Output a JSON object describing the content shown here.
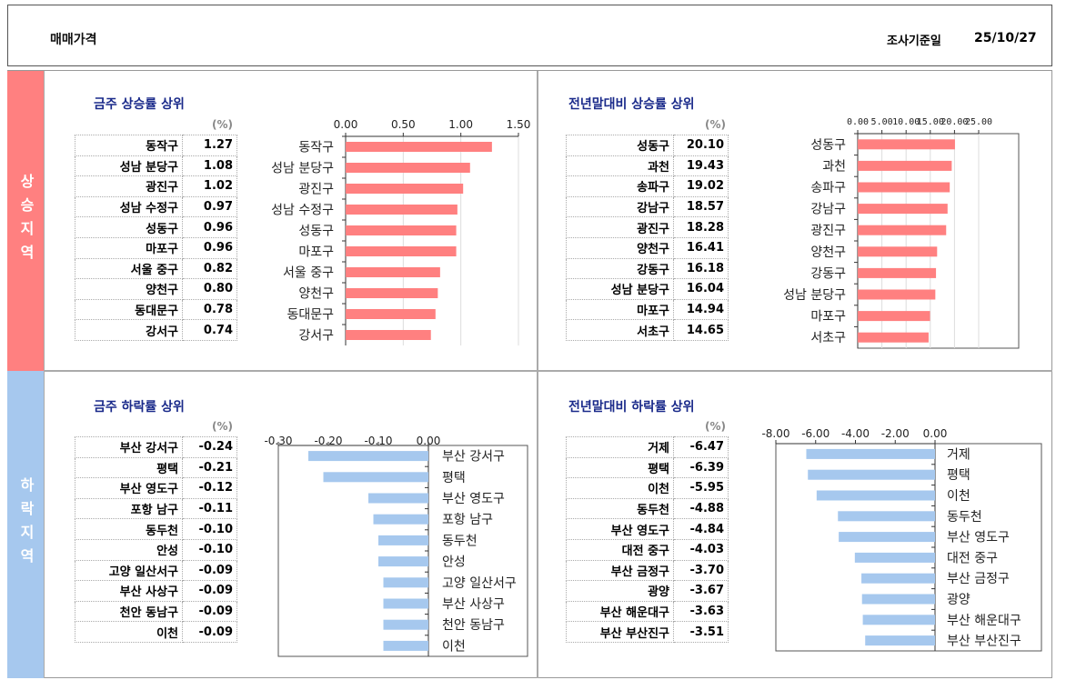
{
  "header": {
    "title": "매매가격",
    "date_label": "조사기준일",
    "date": "25/10/27"
  },
  "side": {
    "up": "상승지역",
    "down": "하락지역"
  },
  "unit": "(%)",
  "colors": {
    "up": "#ff8080",
    "down": "#a6c8ee"
  },
  "quadrants": [
    {
      "title": "금주 상승률 상위",
      "rows": [
        [
          "동작구",
          "1.27"
        ],
        [
          "성남 분당구",
          "1.08"
        ],
        [
          "광진구",
          "1.02"
        ],
        [
          "성남 수정구",
          "0.97"
        ],
        [
          "성동구",
          "0.96"
        ],
        [
          "마포구",
          "0.96"
        ],
        [
          "서울 중구",
          "0.82"
        ],
        [
          "양천구",
          "0.80"
        ],
        [
          "동대문구",
          "0.78"
        ],
        [
          "강서구",
          "0.74"
        ]
      ]
    },
    {
      "title": "전년말대비 상승률 상위",
      "rows": [
        [
          "성동구",
          "20.10"
        ],
        [
          "과천",
          "19.43"
        ],
        [
          "송파구",
          "19.02"
        ],
        [
          "강남구",
          "18.57"
        ],
        [
          "광진구",
          "18.28"
        ],
        [
          "양천구",
          "16.41"
        ],
        [
          "강동구",
          "16.18"
        ],
        [
          "성남 분당구",
          "16.04"
        ],
        [
          "마포구",
          "14.94"
        ],
        [
          "서초구",
          "14.65"
        ]
      ]
    },
    {
      "title": "금주 하락률 상위",
      "rows": [
        [
          "부산 강서구",
          "-0.24"
        ],
        [
          "평택",
          "-0.21"
        ],
        [
          "부산 영도구",
          "-0.12"
        ],
        [
          "포항 남구",
          "-0.11"
        ],
        [
          "동두천",
          "-0.10"
        ],
        [
          "안성",
          "-0.10"
        ],
        [
          "고양 일산서구",
          "-0.09"
        ],
        [
          "부산 사상구",
          "-0.09"
        ],
        [
          "천안 동남구",
          "-0.09"
        ],
        [
          "이천",
          "-0.09"
        ]
      ]
    },
    {
      "title": "전년말대비 하락률 상위",
      "rows": [
        [
          "거제",
          "-6.47"
        ],
        [
          "평택",
          "-6.39"
        ],
        [
          "이천",
          "-5.95"
        ],
        [
          "동두천",
          "-4.88"
        ],
        [
          "부산 영도구",
          "-4.84"
        ],
        [
          "대전 중구",
          "-4.03"
        ],
        [
          "부산 금정구",
          "-3.70"
        ],
        [
          "광양",
          "-3.67"
        ],
        [
          "부산 해운대구",
          "-3.63"
        ],
        [
          "부산 부산진구",
          "-3.51"
        ]
      ]
    }
  ],
  "chart_data": [
    {
      "type": "bar",
      "orientation": "horizontal",
      "categories": [
        "동작구",
        "성남 분당구",
        "광진구",
        "성남 수정구",
        "성동구",
        "마포구",
        "서울 중구",
        "양천구",
        "동대문구",
        "강서구"
      ],
      "values": [
        1.27,
        1.08,
        1.02,
        0.97,
        0.96,
        0.96,
        0.82,
        0.8,
        0.78,
        0.74
      ],
      "xlim": [
        0,
        1.5
      ],
      "ticks": [
        "0.00",
        "0.50",
        "1.00",
        "1.50"
      ],
      "tick_values": [
        0,
        0.5,
        1,
        1.5
      ]
    },
    {
      "type": "bar",
      "orientation": "horizontal",
      "categories": [
        "성동구",
        "과천",
        "송파구",
        "강남구",
        "광진구",
        "양천구",
        "강동구",
        "성남 분당구",
        "마포구",
        "서초구"
      ],
      "values": [
        20.1,
        19.43,
        19.02,
        18.57,
        18.28,
        16.41,
        16.18,
        16.04,
        14.94,
        14.65
      ],
      "xlim": [
        0,
        25
      ],
      "ticks": [
        "0.00",
        "5.00",
        "10.00",
        "15.00",
        "20.00",
        "25.00"
      ],
      "tick_values": [
        0,
        5,
        10,
        15,
        20,
        25
      ]
    },
    {
      "type": "bar",
      "orientation": "horizontal",
      "categories": [
        "부산 강서구",
        "평택",
        "부산 영도구",
        "포항 남구",
        "동두천",
        "안성",
        "고양 일산서구",
        "부산 사상구",
        "천안 동남구",
        "이천"
      ],
      "values": [
        -0.24,
        -0.21,
        -0.12,
        -0.11,
        -0.1,
        -0.1,
        -0.09,
        -0.09,
        -0.09,
        -0.09
      ],
      "xlim": [
        -0.3,
        0
      ],
      "ticks": [
        "-0.30",
        "-0.20",
        "-0.10",
        "0.00"
      ],
      "tick_values": [
        -0.3,
        -0.2,
        -0.1,
        0
      ]
    },
    {
      "type": "bar",
      "orientation": "horizontal",
      "categories": [
        "거제",
        "평택",
        "이천",
        "동두천",
        "부산 영도구",
        "대전 중구",
        "부산 금정구",
        "광양",
        "부산 해운대구",
        "부산 부산진구"
      ],
      "values": [
        -6.47,
        -6.39,
        -5.95,
        -4.88,
        -4.84,
        -4.03,
        -3.7,
        -3.67,
        -3.63,
        -3.51
      ],
      "xlim": [
        -8,
        0
      ],
      "ticks": [
        "-8.00",
        "-6.00",
        "-4.00",
        "-2.00",
        "0.00"
      ],
      "tick_values": [
        -8,
        -6,
        -4,
        -2,
        0
      ]
    }
  ]
}
